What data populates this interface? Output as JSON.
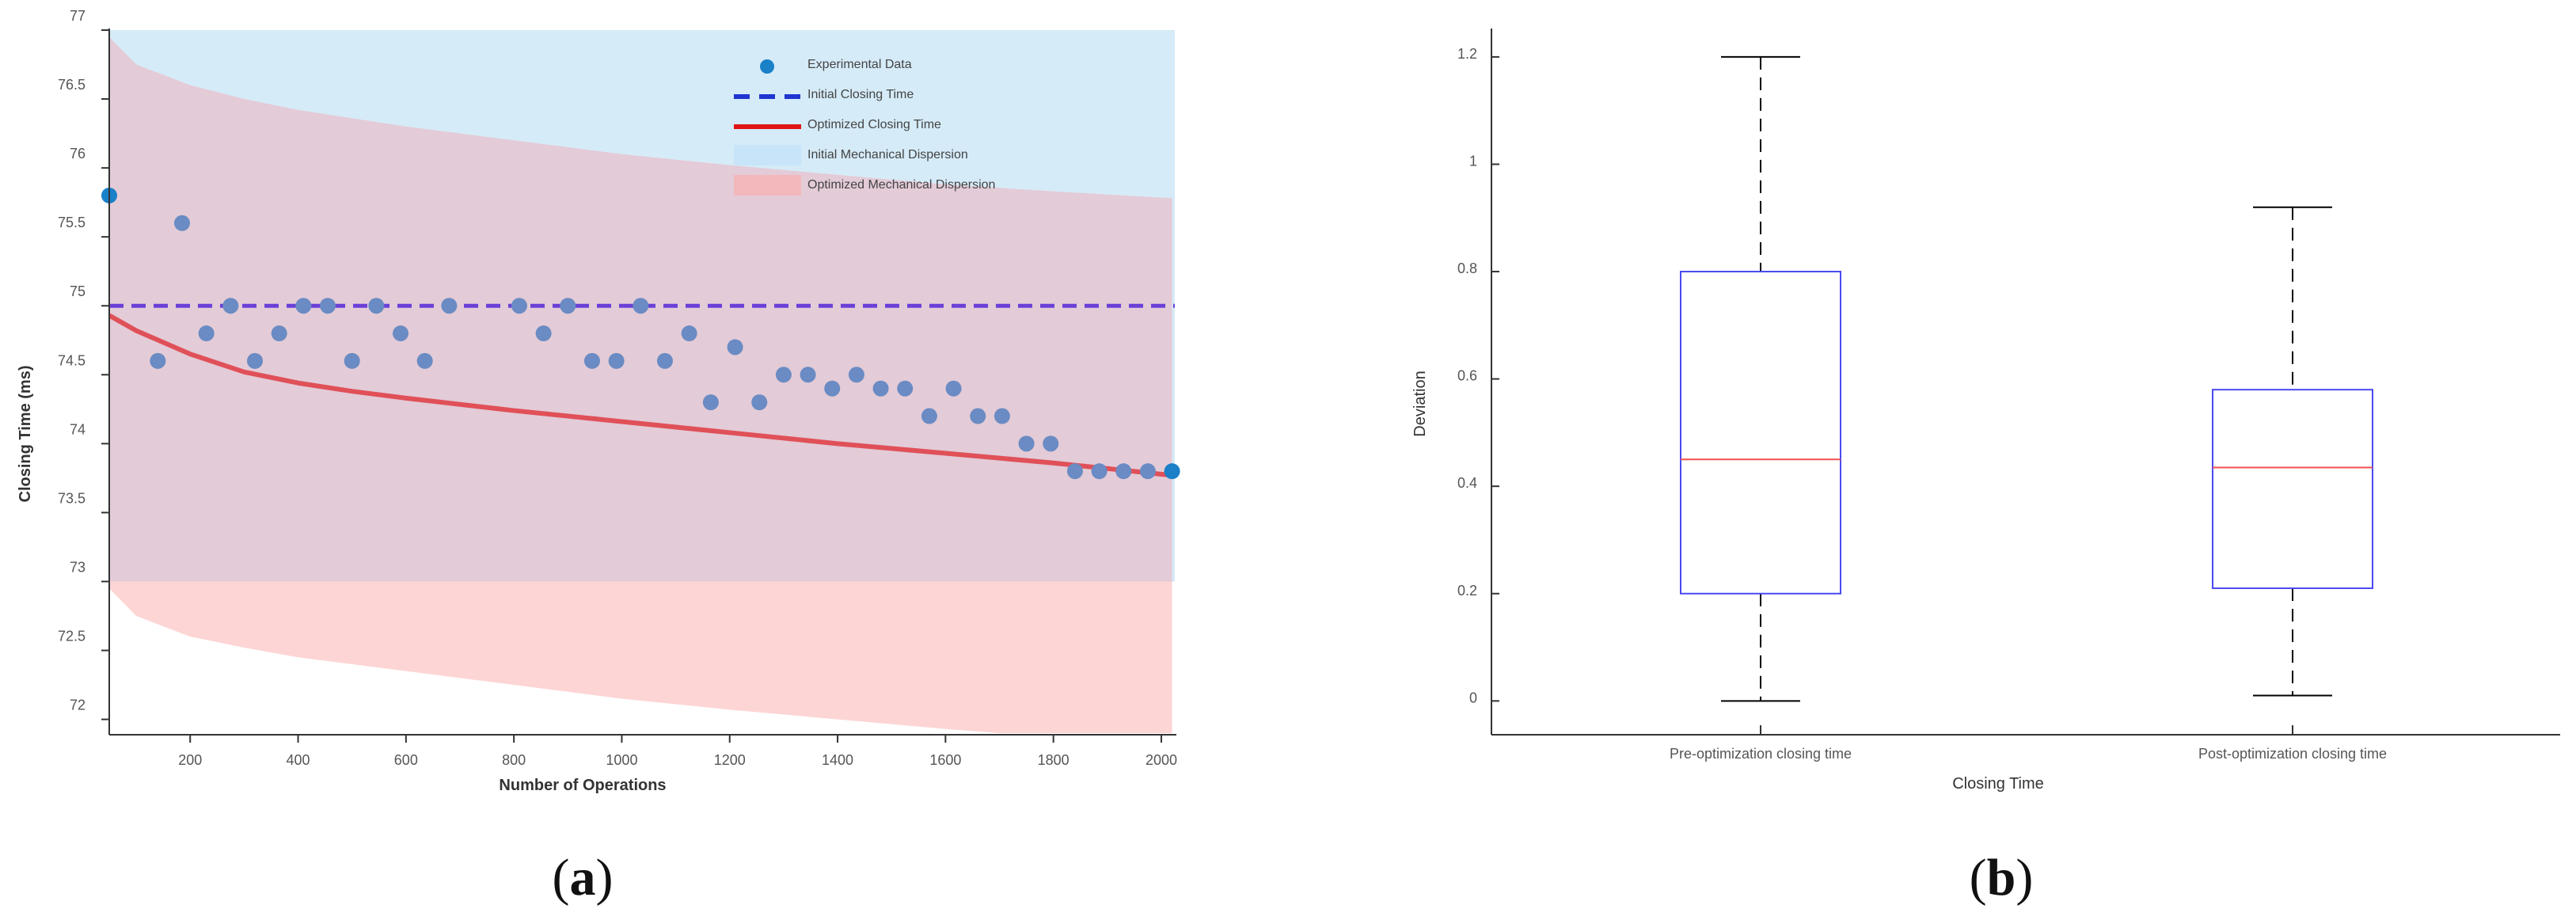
{
  "chart_data": [
    {
      "panel": "(a)",
      "type": "scatter",
      "xlabel": "Number of Operations",
      "ylabel": "Closing Time (ms)",
      "xlim": [
        50,
        2025
      ],
      "ylim": [
        71.9,
        77
      ],
      "xticks": [
        200,
        400,
        600,
        800,
        1000,
        1200,
        1400,
        1600,
        1800,
        2000
      ],
      "yticks": [
        72,
        72.5,
        73,
        73.5,
        74,
        74.5,
        75,
        75.5,
        76,
        76.5,
        77
      ],
      "legend_position": "top-right",
      "legend": [
        "Experimental Data",
        "Initial Closing Time",
        "Optimized Closing Time",
        "Initial Mechanical Dispersion",
        "Optimized Mechanical Dispersion"
      ],
      "experimental_data": {
        "x": [
          50,
          140,
          185,
          230,
          275,
          320,
          365,
          410,
          455,
          500,
          545,
          590,
          635,
          680,
          810,
          855,
          900,
          945,
          990,
          1035,
          1080,
          1125,
          1165,
          1210,
          1255,
          1300,
          1345,
          1390,
          1435,
          1480,
          1525,
          1570,
          1615,
          1660,
          1705,
          1750,
          1795,
          1840,
          1885,
          1930,
          1975,
          2020
        ],
        "y": [
          75.8,
          74.6,
          75.6,
          74.8,
          75.0,
          74.6,
          74.8,
          75.0,
          75.0,
          74.6,
          75.0,
          74.8,
          74.6,
          75.0,
          75.0,
          74.8,
          75.0,
          74.6,
          74.6,
          75.0,
          74.6,
          74.8,
          74.3,
          74.7,
          74.3,
          74.5,
          74.5,
          74.4,
          74.5,
          74.4,
          74.4,
          74.2,
          74.4,
          74.2,
          74.2,
          74.0,
          74.0,
          73.8,
          73.8,
          73.8,
          73.8,
          73.8
        ]
      },
      "initial_closing_time": 75.0,
      "optimized_closing_time": {
        "x": [
          50,
          100,
          200,
          300,
          400,
          500,
          600,
          800,
          1000,
          1200,
          1400,
          1600,
          1800,
          2020
        ],
        "y": [
          74.93,
          74.82,
          74.65,
          74.52,
          74.44,
          74.38,
          74.33,
          74.24,
          74.16,
          74.08,
          74.0,
          73.93,
          73.86,
          73.77
        ]
      },
      "initial_dispersion": {
        "lower": 73.0,
        "upper": 77.0
      },
      "optimized_dispersion": {
        "x": [
          50,
          100,
          200,
          300,
          400,
          600,
          800,
          1000,
          1200,
          1400,
          1600,
          1800,
          2020
        ],
        "upper": [
          76.95,
          76.75,
          76.6,
          76.5,
          76.42,
          76.3,
          76.2,
          76.1,
          76.02,
          75.95,
          75.88,
          75.83,
          75.78
        ],
        "lower": [
          72.95,
          72.75,
          72.6,
          72.52,
          72.45,
          72.35,
          72.25,
          72.15,
          72.07,
          72.0,
          71.93,
          71.87,
          71.82
        ]
      },
      "colors": {
        "scatter": "#6a8bc3",
        "scatter_end": "#1a80c8",
        "initial_line": "#6a40d8",
        "optimized_line": "#e05058",
        "initial_band": "#d5ebf8",
        "optimized_band": "#fdd5d5",
        "overlap_band": "#e3cbd7",
        "legend_dash": "#1f35d0",
        "legend_red": "#e01515",
        "legend_blue_patch": "#c8e4f8",
        "legend_red_patch": "#f2b8bc"
      }
    },
    {
      "panel": "(b)",
      "type": "box",
      "xlabel": "Closing Time",
      "ylabel": "Deviation",
      "ylim": [
        -0.06,
        1.25
      ],
      "yticks": [
        0,
        0.2,
        0.4,
        0.6,
        0.8,
        1,
        1.2
      ],
      "categories": [
        "Pre-optimization closing time",
        "Post-optimization closing time"
      ],
      "boxes": [
        {
          "min": 0.0,
          "q1": 0.2,
          "median": 0.45,
          "q3": 0.8,
          "max": 1.2
        },
        {
          "min": 0.01,
          "q1": 0.21,
          "median": 0.435,
          "q3": 0.58,
          "max": 0.92
        }
      ],
      "colors": {
        "box": "#4a4af0",
        "median": "#f05050",
        "whisker": "#000000"
      }
    }
  ],
  "panel_labels": {
    "a": "a",
    "b": "b"
  }
}
